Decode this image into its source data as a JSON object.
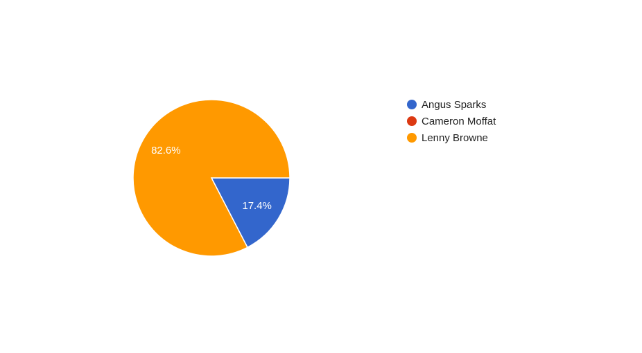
{
  "chart_data": {
    "type": "pie",
    "title": "",
    "legend_position": "right",
    "slices": [
      {
        "name": "Angus Sparks",
        "value": 17.4,
        "label": "17.4%",
        "color": "#3366cc"
      },
      {
        "name": "Cameron Moffat",
        "value": 0,
        "label": "",
        "color": "#dc3912"
      },
      {
        "name": "Lenny Browne",
        "value": 82.6,
        "label": "82.6%",
        "color": "#ff9900"
      }
    ]
  }
}
